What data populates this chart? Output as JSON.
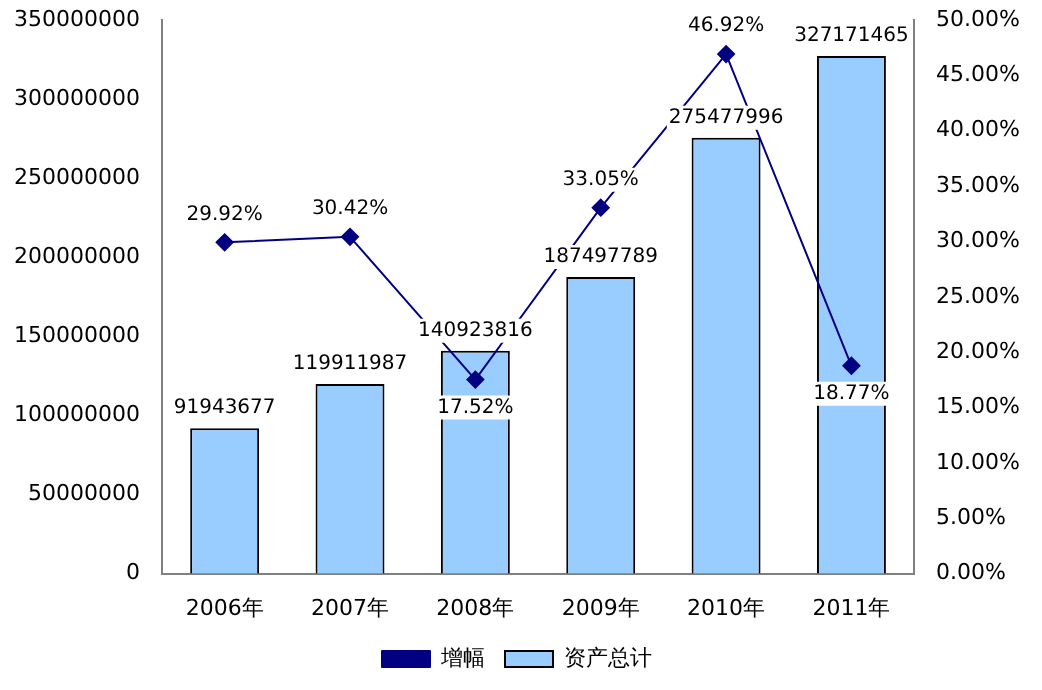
{
  "chart_data": {
    "type": "bar",
    "categories": [
      "2006年",
      "2007年",
      "2008年",
      "2009年",
      "2010年",
      "2011年"
    ],
    "series": [
      {
        "name": "资产总计",
        "color": "#99ccff",
        "values": [
          91943677,
          119911987,
          140923816,
          187497789,
          275477996,
          327171465
        ],
        "value_labels": [
          "91943677",
          "119911987",
          "140923816",
          "187497789",
          "275477996",
          "327171465"
        ]
      },
      {
        "name": "增幅",
        "type": "line",
        "axis": "y2",
        "color": "#000080",
        "marker": "diamond",
        "values": [
          29.92,
          30.42,
          17.52,
          33.05,
          46.92,
          18.77
        ],
        "value_labels": [
          "29.92%",
          "30.42%",
          "17.52%",
          "33.05%",
          "46.92%",
          "18.77%"
        ]
      }
    ],
    "ylim": [
      0,
      350000000
    ],
    "yticks": [
      0,
      50000000,
      100000000,
      150000000,
      200000000,
      250000000,
      300000000,
      350000000
    ],
    "y2lim": [
      0,
      50
    ],
    "y2ticks": [
      {
        "value": 0,
        "label": "0.00%"
      },
      {
        "value": 5,
        "label": "5.00%"
      },
      {
        "value": 10,
        "label": "10.00%"
      },
      {
        "value": 15,
        "label": "15.00%"
      },
      {
        "value": 20,
        "label": "20.00%"
      },
      {
        "value": 25,
        "label": "25.00%"
      },
      {
        "value": 30,
        "label": "30.00%"
      },
      {
        "value": 35,
        "label": "35.00%"
      },
      {
        "value": 40,
        "label": "40.00%"
      },
      {
        "value": 45,
        "label": "45.00%"
      },
      {
        "value": 50,
        "label": "50.00%"
      }
    ],
    "grid": false,
    "legend": "bottom"
  }
}
